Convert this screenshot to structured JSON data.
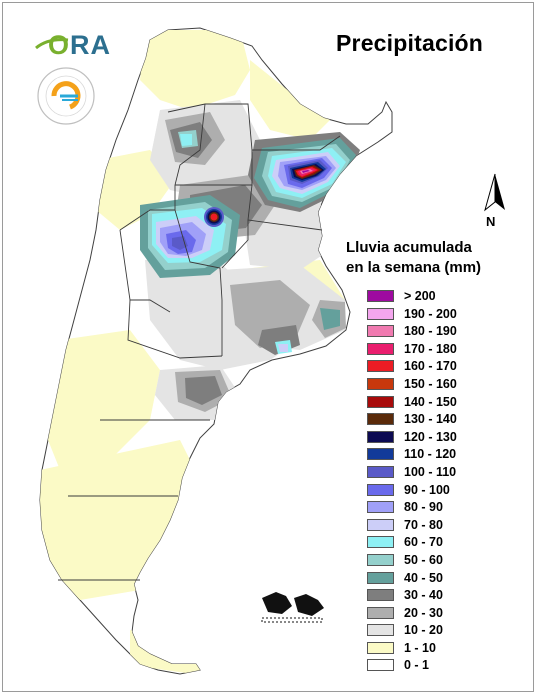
{
  "title": "Precipitación",
  "legend_title_line1": "Lluvia acumulada",
  "legend_title_line2": "en la semana (mm)",
  "north_label": "N",
  "logos": {
    "ora_text_o": "O",
    "ora_text_rest": "RA",
    "smn_text": "SERVICIO METEOROLÓGICO NACIONAL ARGENTINA"
  },
  "legend": [
    {
      "label": "> 200",
      "color": "#9e0aa0"
    },
    {
      "label": "190 - 200",
      "color": "#f4a6ee"
    },
    {
      "label": "180 - 190",
      "color": "#f07ab0"
    },
    {
      "label": "170 - 180",
      "color": "#ea1e6e"
    },
    {
      "label": "160 - 170",
      "color": "#ec1c24"
    },
    {
      "label": "150 - 160",
      "color": "#c8380c"
    },
    {
      "label": "140 - 150",
      "color": "#a80a0a"
    },
    {
      "label": "130 - 140",
      "color": "#5a2a0a"
    },
    {
      "label": "120 - 130",
      "color": "#0c0a52"
    },
    {
      "label": "110 - 120",
      "color": "#123a9a"
    },
    {
      "label": "100 - 110",
      "color": "#5a5ac8"
    },
    {
      "label": "90 - 100",
      "color": "#6a6aec"
    },
    {
      "label": "80 - 90",
      "color": "#a0a0f8"
    },
    {
      "label": "70 - 80",
      "color": "#cccef8"
    },
    {
      "label": "60 - 70",
      "color": "#8ef0f4"
    },
    {
      "label": "50 - 60",
      "color": "#94d0cc"
    },
    {
      "label": "40 - 50",
      "color": "#64a09c"
    },
    {
      "label": "30 - 40",
      "color": "#7e7e7e"
    },
    {
      "label": "20 - 30",
      "color": "#aeaeae"
    },
    {
      "label": "10 - 20",
      "color": "#e4e4e4"
    },
    {
      "label": "1 - 10",
      "color": "#fbfac6"
    },
    {
      "label": "0 - 1",
      "color": "#ffffff"
    }
  ]
}
